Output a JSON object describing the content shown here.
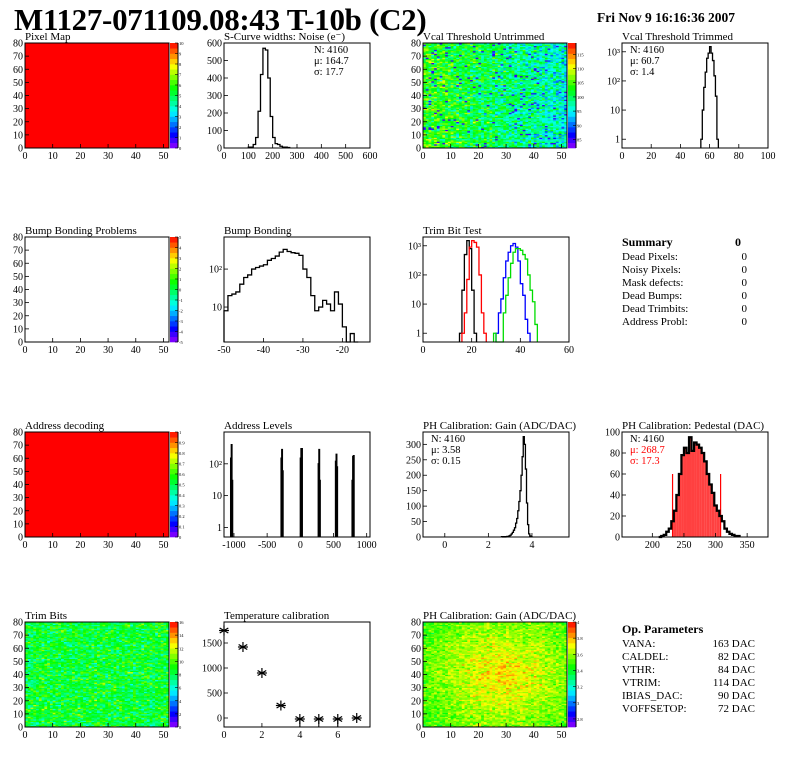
{
  "header": {
    "title": "M1127-071109.08:43 T-10b (C2)",
    "date": "Fri Nov  9 16:16:36 2007"
  },
  "summary": {
    "title": "Summary",
    "total": "0",
    "items": [
      {
        "label": "Dead Pixels:",
        "value": "0"
      },
      {
        "label": "Noisy Pixels:",
        "value": "0"
      },
      {
        "label": "Mask defects:",
        "value": "0"
      },
      {
        "label": "Dead Bumps:",
        "value": "0"
      },
      {
        "label": "Dead Trimbits:",
        "value": "0"
      },
      {
        "label": "Address Probl:",
        "value": "0"
      }
    ]
  },
  "op_parameters": {
    "title": "Op. Parameters",
    "items": [
      {
        "label": "VANA:",
        "value": "163 DAC"
      },
      {
        "label": "CALDEL:",
        "value": "82 DAC"
      },
      {
        "label": "VTHR:",
        "value": "84 DAC"
      },
      {
        "label": "VTRIM:",
        "value": "114 DAC"
      },
      {
        "label": "IBIAS_DAC:",
        "value": "90 DAC"
      },
      {
        "label": "VOFFSETOP:",
        "value": "72 DAC"
      }
    ]
  },
  "chart_data": [
    {
      "id": "pixel-map",
      "type": "heatmap",
      "title": "Pixel Map",
      "xlim": [
        0,
        52
      ],
      "ylim": [
        0,
        80
      ],
      "zlim": [
        0,
        10
      ],
      "uniform": 10,
      "xticks": [
        "0",
        "10",
        "20",
        "30",
        "40",
        "50"
      ],
      "xtickv": [
        0,
        10,
        20,
        30,
        40,
        50
      ],
      "yticks": [
        "0",
        "10",
        "20",
        "30",
        "40",
        "50",
        "60",
        "70",
        "80"
      ],
      "ytickv": [
        0,
        10,
        20,
        30,
        40,
        50,
        60,
        70,
        80
      ],
      "zticks": [
        "0",
        "1",
        "2",
        "3",
        "4",
        "5",
        "6",
        "7",
        "8",
        "9",
        "10"
      ],
      "ztickv": [
        0,
        1,
        2,
        3,
        4,
        5,
        6,
        7,
        8,
        9,
        10
      ]
    },
    {
      "id": "s-curve-noise",
      "type": "histogram",
      "title": "S-Curve widths: Noise (e⁻)",
      "xlim": [
        0,
        600
      ],
      "ylim": [
        0,
        600
      ],
      "log": false,
      "xticks": [
        "0",
        "100",
        "200",
        "300",
        "400",
        "500",
        "600"
      ],
      "xtickv": [
        0,
        100,
        200,
        300,
        400,
        500,
        600
      ],
      "yticks": [
        "0",
        "100",
        "200",
        "300",
        "400",
        "500",
        "600"
      ],
      "ytickv": [
        0,
        100,
        200,
        300,
        400,
        500,
        600
      ],
      "stats": [
        {
          "text": "N: 4160"
        },
        {
          "text": "μ: 164.7"
        },
        {
          "text": "σ: 17.7"
        }
      ],
      "series": [
        {
          "color": "#000000",
          "start": 100,
          "step": 10,
          "values": [
            5,
            5,
            20,
            60,
            210,
            420,
            570,
            560,
            400,
            180,
            60,
            25,
            20,
            10,
            5,
            5,
            3
          ]
        }
      ]
    },
    {
      "id": "vcal-threshold-untrimmed",
      "type": "heatmap",
      "title": "Vcal Threshold Untrimmed",
      "xlim": [
        0,
        52
      ],
      "ylim": [
        0,
        80
      ],
      "zlim": [
        82,
        119
      ],
      "mean": 100,
      "spread": 5,
      "gradient": -4,
      "xticks": [
        "0",
        "10",
        "20",
        "30",
        "40",
        "50"
      ],
      "xtickv": [
        0,
        10,
        20,
        30,
        40,
        50
      ],
      "yticks": [
        "0",
        "10",
        "20",
        "30",
        "40",
        "50",
        "60",
        "70",
        "80"
      ],
      "ytickv": [
        0,
        10,
        20,
        30,
        40,
        50,
        60,
        70,
        80
      ],
      "zticks": [
        "85",
        "90",
        "95",
        "100",
        "105",
        "110",
        "115"
      ],
      "ztickv": [
        85,
        90,
        95,
        100,
        105,
        110,
        115
      ]
    },
    {
      "id": "vcal-threshold-trimmed",
      "type": "histogram",
      "title": "Vcal Threshold Trimmed",
      "xlim": [
        0,
        100
      ],
      "ylim": [
        0.5,
        2000
      ],
      "log": true,
      "xticks": [
        "0",
        "20",
        "40",
        "60",
        "80",
        "100"
      ],
      "xtickv": [
        0,
        20,
        40,
        60,
        80,
        100
      ],
      "yticks": [
        "1",
        "10",
        "10²",
        "10³"
      ],
      "ytickv": [
        1,
        10,
        100,
        1000
      ],
      "stats": [
        {
          "text": "N: 4160"
        },
        {
          "text": "μ: 60.7"
        },
        {
          "text": "σ:  1.4"
        }
      ],
      "series": [
        {
          "color": "#000000",
          "start": 54,
          "step": 1,
          "values": [
            1,
            10,
            60,
            200,
            600,
            900,
            1500,
            900,
            500,
            150,
            30,
            1
          ]
        }
      ]
    },
    {
      "id": "bump-bonding-problems",
      "type": "heatmap",
      "title": "Bump Bonding Problems",
      "xlim": [
        0,
        52
      ],
      "ylim": [
        0,
        80
      ],
      "zlim": [
        -5,
        5
      ],
      "empty": true,
      "xticks": [
        "0",
        "10",
        "20",
        "30",
        "40",
        "50"
      ],
      "xtickv": [
        0,
        10,
        20,
        30,
        40,
        50
      ],
      "yticks": [
        "0",
        "10",
        "20",
        "30",
        "40",
        "50",
        "60",
        "70",
        "80"
      ],
      "ytickv": [
        0,
        10,
        20,
        30,
        40,
        50,
        60,
        70,
        80
      ],
      "zticks": [
        "-5",
        "-4",
        "-3",
        "-2",
        "-1",
        "0",
        "1",
        "2",
        "3",
        "4",
        "5"
      ],
      "ztickv": [
        -5,
        -4,
        -3,
        -2,
        -1,
        0,
        1,
        2,
        3,
        4,
        5
      ]
    },
    {
      "id": "bump-bonding",
      "type": "histogram",
      "title": "Bump Bonding",
      "xlim": [
        -50,
        -13
      ],
      "ylim": [
        1.2,
        700
      ],
      "log": true,
      "xticks": [
        "-50",
        "-40",
        "-30",
        "-20"
      ],
      "xtickv": [
        -50,
        -40,
        -30,
        -20
      ],
      "yticks": [
        "10",
        "10²"
      ],
      "ytickv": [
        10,
        100
      ],
      "series": [
        {
          "color": "#000000",
          "start": -50,
          "step": 1,
          "values": [
            8,
            20,
            22,
            25,
            40,
            60,
            70,
            100,
            110,
            120,
            130,
            170,
            190,
            220,
            280,
            330,
            290,
            270,
            260,
            230,
            100,
            60,
            20,
            8,
            10,
            15,
            12,
            8,
            25,
            12,
            3,
            0,
            2,
            0
          ]
        }
      ]
    },
    {
      "id": "trim-bit-test",
      "type": "histogram",
      "title": "Trim Bit Test",
      "xlim": [
        0,
        60
      ],
      "ylim": [
        0.5,
        2000
      ],
      "log": true,
      "xticks": [
        "0",
        "20",
        "40",
        "60"
      ],
      "xtickv": [
        0,
        20,
        40,
        60
      ],
      "yticks": [
        "1",
        "10",
        "10²",
        "10³"
      ],
      "ytickv": [
        1,
        10,
        100,
        1000
      ],
      "series": [
        {
          "color": "#000000",
          "start": 15,
          "step": 1,
          "values": [
            1,
            30,
            500,
            1500,
            800,
            30,
            1
          ]
        },
        {
          "color": "#ff0000",
          "start": 16,
          "step": 1,
          "values": [
            1,
            5,
            70,
            900,
            1500,
            1300,
            900,
            100,
            5,
            1
          ]
        },
        {
          "color": "#0000ff",
          "start": 30,
          "step": 1,
          "values": [
            1,
            5,
            15,
            80,
            300,
            600,
            1000,
            1200,
            900,
            300,
            50,
            20,
            3,
            1
          ]
        },
        {
          "color": "#00dd00",
          "start": 29,
          "step": 1,
          "values": [
            1,
            0,
            0,
            0,
            5,
            20,
            80,
            250,
            600,
            800,
            800,
            700,
            500,
            350,
            100,
            30,
            12,
            2
          ]
        }
      ]
    },
    {
      "id": "address-decoding",
      "type": "heatmap",
      "title": "Address decoding",
      "xlim": [
        0,
        52
      ],
      "ylim": [
        0,
        80
      ],
      "zlim": [
        0,
        1
      ],
      "uniform": 1,
      "xticks": [
        "0",
        "10",
        "20",
        "30",
        "40",
        "50"
      ],
      "xtickv": [
        0,
        10,
        20,
        30,
        40,
        50
      ],
      "yticks": [
        "0",
        "10",
        "20",
        "30",
        "40",
        "50",
        "60",
        "70",
        "80"
      ],
      "ytickv": [
        0,
        10,
        20,
        30,
        40,
        50,
        60,
        70,
        80
      ],
      "zticks": [
        "0",
        "0.1",
        "0.2",
        "0.3",
        "0.4",
        "0.5",
        "0.6",
        "0.7",
        "0.8",
        "0.9",
        "1"
      ],
      "ztickv": [
        0,
        0.1,
        0.2,
        0.3,
        0.4,
        0.5,
        0.6,
        0.7,
        0.8,
        0.9,
        1
      ]
    },
    {
      "id": "address-levels",
      "type": "histogram",
      "title": "Address Levels",
      "xlim": [
        -1150,
        1050
      ],
      "ylim": [
        0.5,
        1000
      ],
      "log": true,
      "xticks": [
        "-1000",
        "-500",
        "0",
        "500",
        "1000"
      ],
      "xtickv": [
        -1000,
        -500,
        0,
        500,
        1000
      ],
      "yticks": [
        "1",
        "10",
        "10²"
      ],
      "ytickv": [
        1,
        10,
        100
      ],
      "series": [
        {
          "color": "#000000",
          "step": 10,
          "bins": [
            [
              -1045,
              150
            ],
            [
              -1035,
              400
            ],
            [
              -1025,
              30
            ],
            [
              -285,
              150
            ],
            [
              -275,
              280
            ],
            [
              -265,
              60
            ],
            [
              5,
              150
            ],
            [
              15,
              300
            ],
            [
              25,
              300
            ],
            [
              275,
              100
            ],
            [
              285,
              280
            ],
            [
              295,
              30
            ],
            [
              535,
              120
            ],
            [
              545,
              200
            ],
            [
              555,
              80
            ],
            [
              785,
              30
            ],
            [
              795,
              170
            ],
            [
              805,
              180
            ]
          ]
        }
      ]
    },
    {
      "id": "ph-calibration-gain-hist",
      "type": "histogram",
      "title": "PH Calibration: Gain (ADC/DAC)",
      "xlim": [
        -1,
        5.7
      ],
      "ylim": [
        0,
        340
      ],
      "log": false,
      "xticks": [
        "0",
        "2",
        "4"
      ],
      "xtickv": [
        0,
        2,
        4
      ],
      "yticks": [
        "0",
        "50",
        "100",
        "150",
        "200",
        "250",
        "300"
      ],
      "ytickv": [
        0,
        50,
        100,
        150,
        200,
        250,
        300
      ],
      "stats": [
        {
          "text": "N: 4160"
        },
        {
          "text": "μ: 3.58"
        },
        {
          "text": "σ: 0.15"
        }
      ],
      "series": [
        {
          "color": "#000000",
          "start": 2.6,
          "step": 0.05,
          "values": [
            1,
            0,
            1,
            0,
            1,
            2,
            2,
            4,
            6,
            10,
            15,
            22,
            30,
            45,
            60,
            85,
            115,
            150,
            200,
            260,
            325,
            300,
            220,
            110,
            40,
            10,
            3,
            1
          ]
        }
      ]
    },
    {
      "id": "ph-calibration-pedestal",
      "type": "histogram",
      "title": "PH Calibration: Pedestal (DAC)",
      "xlim": [
        152,
        383
      ],
      "ylim": [
        0,
        100
      ],
      "log": false,
      "xticks": [
        "200",
        "250",
        "300",
        "350"
      ],
      "xtickv": [
        200,
        250,
        300,
        350
      ],
      "yticks": [
        "0",
        "20",
        "40",
        "60",
        "80",
        "100"
      ],
      "ytickv": [
        0,
        20,
        40,
        60,
        80,
        100
      ],
      "stats": [
        {
          "text": "N: 4160",
          "color": "#000000"
        },
        {
          "text": "μ: 268.7",
          "color": "#ff0000"
        },
        {
          "text": "σ: 17.3",
          "color": "#ff0000"
        }
      ],
      "fit_range": [
        232,
        308
      ],
      "fill_color": "#ff0000",
      "series": [
        {
          "color": "#000000",
          "start": 210,
          "step": 4,
          "values": [
            0,
            1,
            2,
            5,
            8,
            15,
            25,
            40,
            60,
            78,
            85,
            80,
            95,
            82,
            90,
            88,
            85,
            80,
            72,
            60,
            50,
            42,
            30,
            25,
            20,
            15,
            8,
            5,
            3,
            2,
            1,
            1
          ]
        }
      ]
    },
    {
      "id": "trim-bits",
      "type": "heatmap",
      "title": "Trim Bits",
      "xlim": [
        0,
        52
      ],
      "ylim": [
        0,
        80
      ],
      "zlim": [
        0,
        16
      ],
      "mean": 8.5,
      "spread": 1.8,
      "gradient": 0,
      "xticks": [
        "0",
        "10",
        "20",
        "30",
        "40",
        "50"
      ],
      "xtickv": [
        0,
        10,
        20,
        30,
        40,
        50
      ],
      "yticks": [
        "0",
        "10",
        "20",
        "30",
        "40",
        "50",
        "60",
        "70",
        "80"
      ],
      "ytickv": [
        0,
        10,
        20,
        30,
        40,
        50,
        60,
        70,
        80
      ],
      "zticks": [
        "0",
        "2",
        "4",
        "6",
        "8",
        "10",
        "12",
        "14",
        "16"
      ],
      "ztickv": [
        0,
        2,
        4,
        6,
        8,
        10,
        12,
        14,
        16
      ]
    },
    {
      "id": "temperature-calibration",
      "type": "scatter",
      "title": "Temperature calibration",
      "xlim": [
        0,
        7.7
      ],
      "ylim": [
        -180,
        1920
      ],
      "xticks": [
        "0",
        "2",
        "4",
        "6"
      ],
      "xtickv": [
        0,
        2,
        4,
        6
      ],
      "yticks": [
        "0",
        "500",
        "1000",
        "1500"
      ],
      "ytickv": [
        0,
        500,
        1000,
        1500
      ],
      "points": [
        [
          0,
          1750
        ],
        [
          1,
          1420
        ],
        [
          2,
          900
        ],
        [
          3,
          250
        ],
        [
          4,
          -20
        ],
        [
          5,
          -20
        ],
        [
          6,
          -20
        ],
        [
          7,
          0
        ]
      ]
    },
    {
      "id": "ph-calibration-gain-map",
      "type": "heatmap",
      "title": "PH Calibration: Gain (ADC/DAC)",
      "xlim": [
        0,
        52
      ],
      "ylim": [
        0,
        80
      ],
      "zlim": [
        2.7,
        4.0
      ],
      "mean": 3.6,
      "spread": 0.1,
      "gradient": 0,
      "center_boost": 0.08,
      "xticks": [
        "0",
        "10",
        "20",
        "30",
        "40",
        "50"
      ],
      "xtickv": [
        0,
        10,
        20,
        30,
        40,
        50
      ],
      "yticks": [
        "0",
        "10",
        "20",
        "30",
        "40",
        "50",
        "60",
        "70",
        "80"
      ],
      "ytickv": [
        0,
        10,
        20,
        30,
        40,
        50,
        60,
        70,
        80
      ],
      "zticks": [
        "2.8",
        "3",
        "3.2",
        "3.4",
        "3.6",
        "3.8",
        "4"
      ],
      "ztickv": [
        2.8,
        3,
        3.2,
        3.4,
        3.6,
        3.8,
        4
      ]
    }
  ]
}
